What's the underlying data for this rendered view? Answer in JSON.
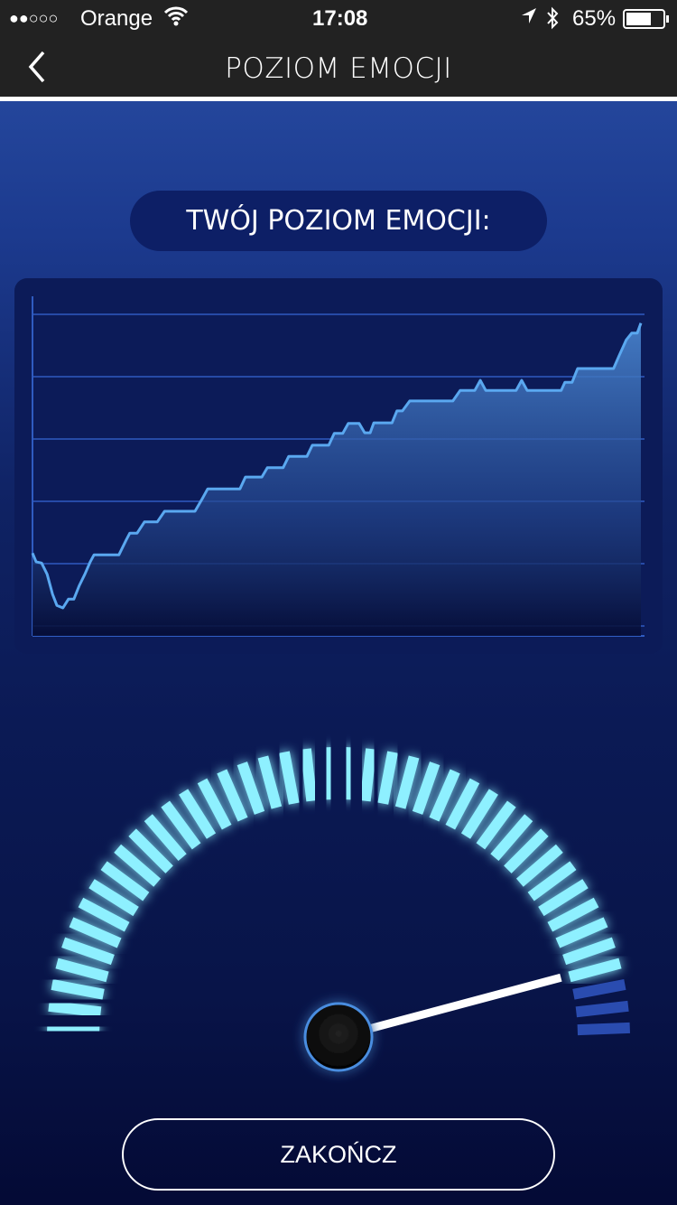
{
  "status_bar": {
    "signal": "●●○○○",
    "carrier": "Orange",
    "time": "17:08",
    "battery": "65%",
    "icons": [
      "wifi-icon",
      "location-arrow-icon",
      "bluetooth-icon",
      "battery-icon"
    ]
  },
  "nav": {
    "title": "POZIOM EMOCJI",
    "back_icon": "chevron-left-icon"
  },
  "header_pill": {
    "label": "TWÓJ POZIOM EMOCJI:"
  },
  "chart_data": {
    "type": "area",
    "title": "",
    "xlabel": "",
    "ylabel": "",
    "grid": true,
    "xlim": [
      0,
      100
    ],
    "ylim": [
      0,
      5
    ],
    "x": [
      0,
      0.6,
      1.5,
      2.4,
      3.3,
      4.0,
      5.0,
      5.9,
      6.8,
      7.7,
      8.6,
      9.5,
      10.1,
      14.2,
      15.4,
      16.0,
      17.2,
      18.4,
      20.5,
      21.7,
      26.7,
      27.9,
      28.8,
      34.1,
      35.0,
      37.7,
      38.6,
      41.2,
      42.1,
      45.1,
      46.0,
      48.7,
      49.6,
      51.0,
      51.9,
      53.7,
      54.6,
      55.5,
      56.1,
      59.1,
      59.9,
      60.8,
      62.0,
      69.1,
      70.3,
      72.7,
      73.6,
      74.5,
      79.5,
      80.4,
      81.3,
      86.9,
      87.5,
      88.7,
      89.6,
      95.5,
      96.4,
      97.6,
      98.5,
      99.4,
      100
    ],
    "y": [
      1.17,
      1.03,
      1.01,
      0.83,
      0.51,
      0.33,
      0.29,
      0.43,
      0.43,
      0.65,
      0.83,
      1.03,
      1.14,
      1.14,
      1.38,
      1.49,
      1.49,
      1.67,
      1.67,
      1.84,
      1.84,
      2.04,
      2.2,
      2.2,
      2.39,
      2.39,
      2.54,
      2.54,
      2.72,
      2.72,
      2.9,
      2.9,
      3.09,
      3.09,
      3.25,
      3.25,
      3.1,
      3.1,
      3.26,
      3.26,
      3.45,
      3.45,
      3.61,
      3.61,
      3.78,
      3.78,
      3.94,
      3.78,
      3.78,
      3.94,
      3.78,
      3.78,
      3.91,
      3.91,
      4.13,
      4.13,
      4.33,
      4.59,
      4.7,
      4.7,
      4.86
    ],
    "colors": {
      "line": "#5aa8f0",
      "grid": "#2f5bc0",
      "fill_top": "#4a86d0"
    }
  },
  "gauge": {
    "value": 0.917,
    "ticks": 42,
    "colors": {
      "active": "#8ef0ff",
      "inactive": "#2a4cb0",
      "needle": "#ffffff"
    }
  },
  "footer": {
    "finish_label": "ZAKOŃCZ"
  }
}
